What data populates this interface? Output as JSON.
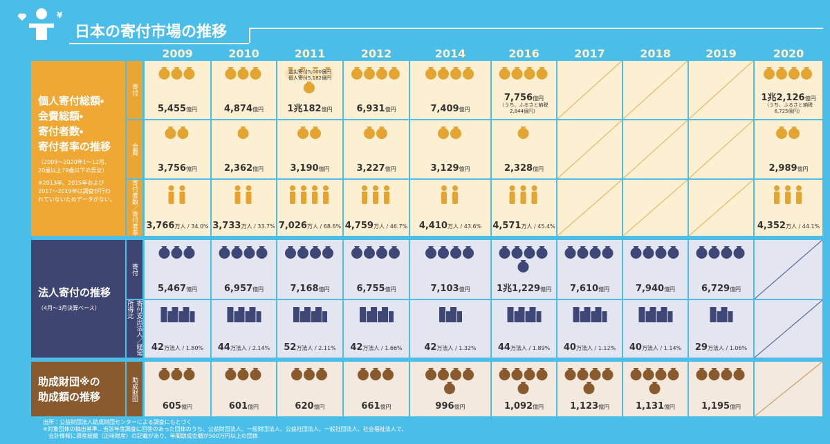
{
  "header": {
    "title": "日本の寄付市場の推移",
    "years": [
      "2009",
      "2010",
      "2011",
      "2012",
      "2014",
      "2016",
      "2017",
      "2018",
      "2019",
      "2020"
    ]
  },
  "sections": [
    {
      "label": [
        "個人寄付総額・",
        "会費総額・",
        "寄付者数・",
        "寄付者率の推移"
      ],
      "subtitle": [
        "（2009～2020年1～12月、",
        "20歳以上79歳以下の男女）"
      ],
      "note": [
        "※2013年、2015年および",
        "2017～2019年は調査が行わ",
        "れていないためデータがない。"
      ],
      "rows": [
        {
          "label": "寄付",
          "cells": [
            {
              "value": "5,455",
              "unit": "億円"
            },
            {
              "value": "4,874",
              "unit": "億円"
            },
            {
              "value": "1兆182",
              "unit": "億円",
              "breakdown": [
                "震災寄付5,000億円",
                "個人寄付5,182億円"
              ]
            },
            {
              "value": "6,931",
              "unit": "億円"
            },
            {
              "value": "7,409",
              "unit": "億円"
            },
            {
              "value": "7,756",
              "unit": "億円",
              "note": [
                "（うち、ふるさと納税",
                "2,844億円）"
              ]
            },
            null,
            null,
            null,
            {
              "value": "1兆2,126",
              "unit": "億円",
              "note": [
                "（うち、ふるさと納税",
                "6,725億円）"
              ]
            }
          ]
        },
        {
          "label": "会費",
          "cells": [
            {
              "value": "3,756",
              "unit": "億円"
            },
            {
              "value": "2,362",
              "unit": "億円"
            },
            {
              "value": "3,190",
              "unit": "億円"
            },
            {
              "value": "3,227",
              "unit": "億円"
            },
            {
              "value": "3,129",
              "unit": "億円"
            },
            {
              "value": "2,328",
              "unit": "億円"
            },
            null,
            null,
            null,
            {
              "value": "2,989",
              "unit": "億円"
            }
          ]
        },
        {
          "label": "寄付者数／寄付者率",
          "cells": [
            {
              "value": "3,766",
              "unit": "万人 / 34.0%"
            },
            {
              "value": "3,733",
              "unit": "万人 / 33.7%"
            },
            {
              "value": "7,026",
              "unit": "万人 / 68.6%"
            },
            {
              "value": "4,759",
              "unit": "万人 / 46.7%"
            },
            {
              "value": "4,410",
              "unit": "万人 / 43.6%"
            },
            {
              "value": "4,571",
              "unit": "万人 / 45.4%"
            },
            null,
            null,
            null,
            {
              "value": "4,352",
              "unit": "万人 / 44.1%"
            }
          ]
        }
      ]
    },
    {
      "label": [
        "法人寄付の推移"
      ],
      "subtitle": [
        "（4月～3月決算ベース）"
      ],
      "rows": [
        {
          "label": "寄付",
          "cells": [
            {
              "value": "5,467",
              "unit": "億円"
            },
            {
              "value": "6,957",
              "unit": "億円"
            },
            {
              "value": "7,168",
              "unit": "億円"
            },
            {
              "value": "6,755",
              "unit": "億円"
            },
            {
              "value": "7,103",
              "unit": "億円"
            },
            {
              "value": "1兆1,229",
              "unit": "億円"
            },
            {
              "value": "7,610",
              "unit": "億円"
            },
            {
              "value": "7,940",
              "unit": "億円"
            },
            {
              "value": "6,729",
              "unit": "億円"
            },
            null
          ]
        },
        {
          "label": "寄付支出法人／経常所得比",
          "cells": [
            {
              "value": "42",
              "unit": "万法人 / 1.80%"
            },
            {
              "value": "44",
              "unit": "万法人 / 2.14%"
            },
            {
              "value": "52",
              "unit": "万法人 / 2.11%"
            },
            {
              "value": "42",
              "unit": "万法人 / 1.66%"
            },
            {
              "value": "42",
              "unit": "万法人 / 1.32%"
            },
            {
              "value": "44",
              "unit": "万法人 / 1.89%"
            },
            {
              "value": "40",
              "unit": "万法人 / 1.12%"
            },
            {
              "value": "40",
              "unit": "万法人 / 1.14%"
            },
            {
              "value": "29",
              "unit": "万法人 / 1.06%"
            },
            null
          ]
        }
      ]
    },
    {
      "label": [
        "助成財団※の",
        "助成額の推移"
      ],
      "rows": [
        {
          "label": "助成財団",
          "cells": [
            {
              "value": "605",
              "unit": "億円"
            },
            {
              "value": "601",
              "unit": "億円"
            },
            {
              "value": "620",
              "unit": "億円"
            },
            {
              "value": "661",
              "unit": "億円"
            },
            {
              "value": "996",
              "unit": "億円"
            },
            {
              "value": "1,092",
              "unit": "億円"
            },
            {
              "value": "1,123",
              "unit": "億円"
            },
            {
              "value": "1,131",
              "unit": "億円"
            },
            {
              "value": "1,195",
              "unit": "億円"
            },
            null
          ]
        }
      ]
    }
  ],
  "footnotes": [
    "出所：公益財団法人助成財団センターによる調査にもとづく",
    "※対象団体の抽出基準…当該年度調査に回答のあった団体のうち、公益財団法人、一般財団法人、公益社団法人、一般社団法人、社会福祉法人で、",
    "会計情報に資産総額（正味財産）の記載があり、年間助成金額が500万円以上の団体"
  ]
}
